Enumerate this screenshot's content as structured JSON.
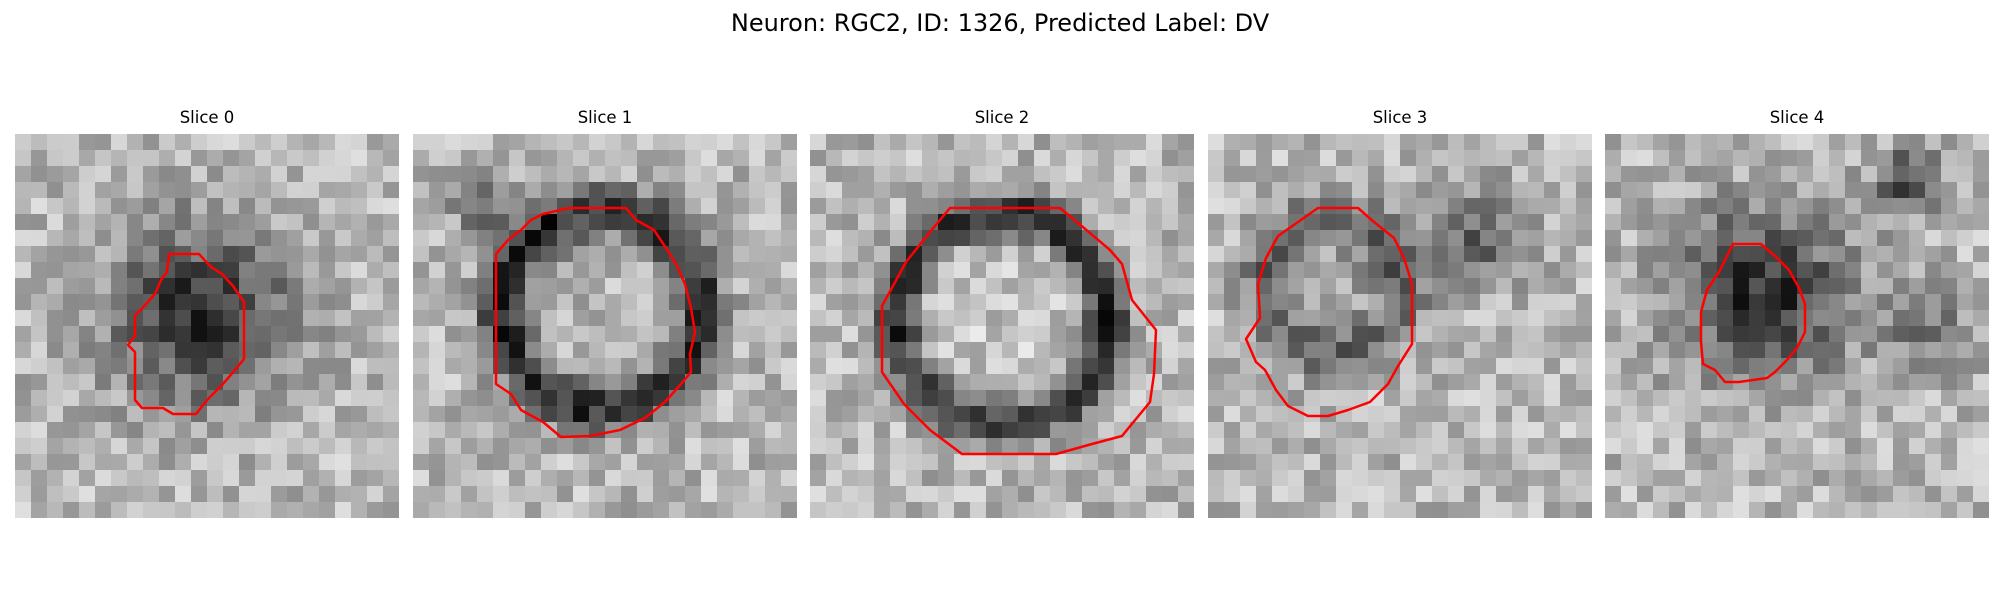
{
  "figure": {
    "title": "Neuron: RGC2, ID: 1326, Predicted Label: DV",
    "contour_color": "#ff0000",
    "colormap": "grayscale"
  },
  "panels": [
    {
      "title": "Slice 0"
    },
    {
      "title": "Slice 1"
    },
    {
      "title": "Slice 2"
    },
    {
      "title": "Slice 3"
    },
    {
      "title": "Slice 4"
    }
  ]
}
